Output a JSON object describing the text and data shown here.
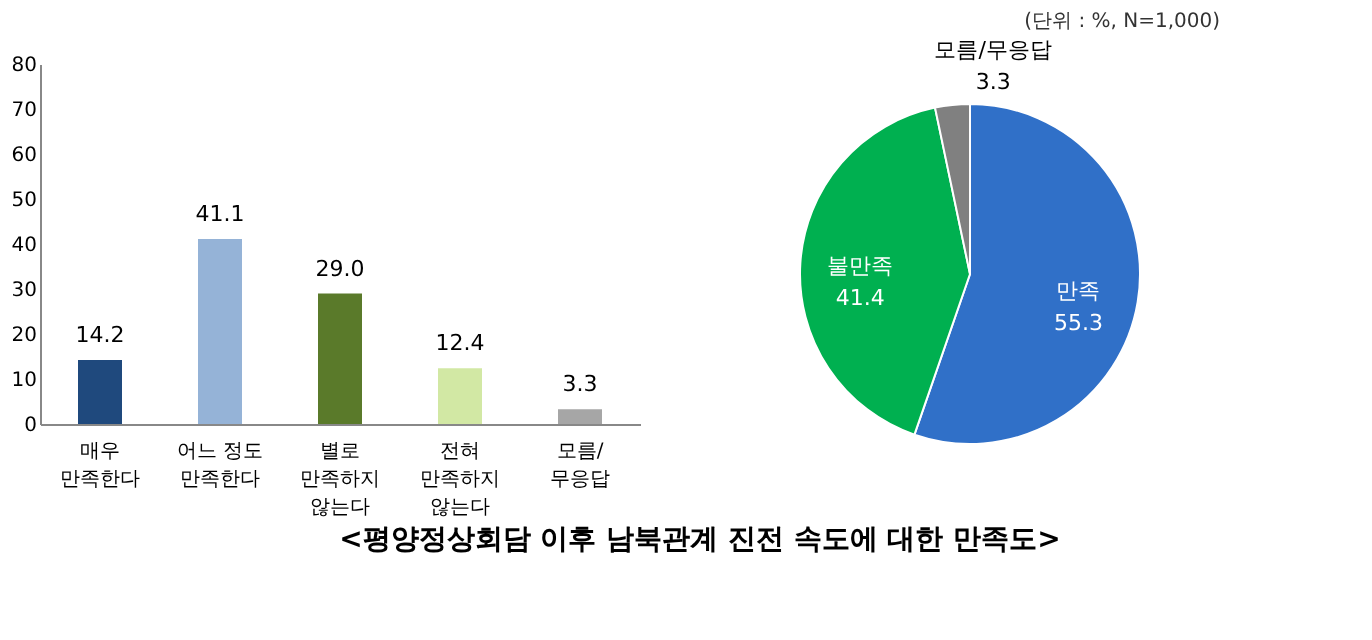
{
  "chart_data": [
    {
      "type": "bar",
      "title": "<평양정상회담 이후 남북관계 진전 속도에 대한 만족도>",
      "categories": [
        "매우\n만족한다",
        "어느 정도\n만족한다",
        "별로\n만족하지\n않는다",
        "전혀\n만족하지\n않는다",
        "모름/\n무응답"
      ],
      "values": [
        14.2,
        41.1,
        29.0,
        12.4,
        3.3
      ],
      "value_labels": [
        "14.2",
        "41.1",
        "29.0",
        "12.4",
        "3.3"
      ],
      "colors": [
        "#1f497d",
        "#95b3d7",
        "#5a7a2a",
        "#d2e8a4",
        "#a6a6a6"
      ],
      "ylim": [
        0,
        80
      ],
      "yticks": [
        0,
        10,
        20,
        30,
        40,
        50,
        60,
        70,
        80
      ],
      "grid": false,
      "legend": false
    },
    {
      "type": "pie",
      "annotations": [
        "(단위 : %, N=1,000)"
      ],
      "categories": [
        "만족",
        "불만족",
        "모름/무응답"
      ],
      "values": [
        55.3,
        41.4,
        3.3
      ],
      "colors": [
        "#3070c8",
        "#00b050",
        "#808080"
      ],
      "legend": false,
      "data_labels": true
    }
  ]
}
